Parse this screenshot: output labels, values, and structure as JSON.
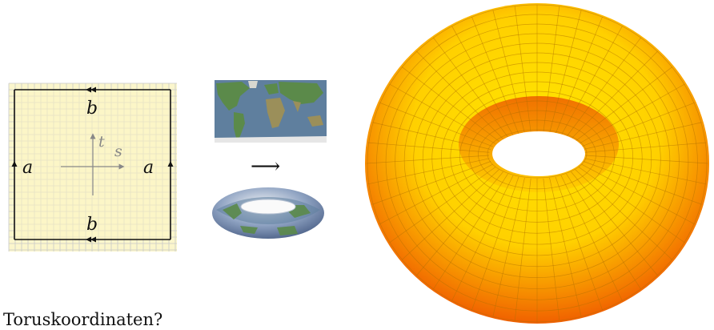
{
  "diagram": {
    "square": {
      "top_label": "b",
      "bottom_label": "b",
      "left_label": "a",
      "right_label": "a",
      "axis_s_label": "s",
      "axis_t_label": "t"
    },
    "mapping_arrow": "⟶",
    "caption": "Toruskoordinaten?"
  },
  "colors": {
    "square_fill": "#fbf6cc",
    "grid_line": "#c8c8c8",
    "edge": "#111111",
    "axis": "#888888",
    "torus_light": "#ffe600",
    "torus_dark": "#f06000",
    "torus_mesh": "#b07000",
    "ocean": "#5f7f9e",
    "land": "#5b8a4a"
  }
}
